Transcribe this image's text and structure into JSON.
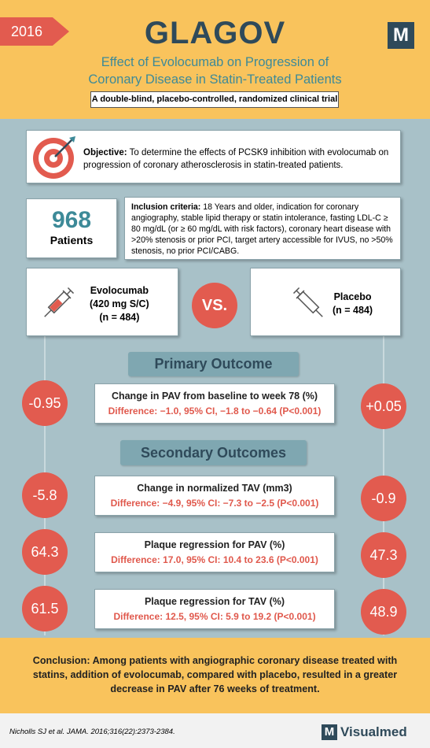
{
  "header": {
    "year": "2016",
    "title": "GLAGOV",
    "logo": "M",
    "subtitle": [
      "Effect of Evolocumab on Progression of",
      "Coronary Disease in Statin-Treated Patients"
    ],
    "design": "A double-blind, placebo-controlled, randomized clinical trial"
  },
  "objective": {
    "label": "Objective:",
    "text": "To determine the effects of PCSK9 inhibition with evolocumab on progression of coronary atherosclerosis in statin-treated patients."
  },
  "patients": {
    "count": "968",
    "label": "Patients"
  },
  "inclusion": {
    "label": "Inclusion criteria:",
    "text": "18 Years and older, indication for coronary angiography, stable lipid therapy or statin intolerance, fasting LDL-C ≥ 80 mg/dL (or ≥ 60 mg/dL with risk factors), coronary heart disease with >20% stenosis or prior PCI, target artery accessible for IVUS, no >50% stenosis, no prior PCI/CABG."
  },
  "arms": [
    {
      "name": "Evolocumab",
      "lines": [
        "(420 mg S/C)",
        "(n = 484)"
      ]
    },
    {
      "name": "Placebo",
      "lines": [
        "(n = 484)"
      ]
    }
  ],
  "vs": "VS.",
  "primary": {
    "heading": "Primary Outcome",
    "outcomes": [
      {
        "title": "Change in PAV from baseline to week 78 (%)",
        "difference": "Difference: −1.0, 95% CI, −1.8 to −0.64 (P<0.001)",
        "evolocumab": "-0.95",
        "placebo": "+0.05"
      }
    ]
  },
  "secondary": {
    "heading": "Secondary Outcomes",
    "outcomes": [
      {
        "title": "Change in normalized TAV (mm3)",
        "difference": "Difference: −4.9, 95% CI: −7.3 to −2.5 (P<0.001)",
        "evolocumab": "-5.8",
        "placebo": "-0.9"
      },
      {
        "title": "Plaque regression for PAV (%)",
        "difference": "Difference: 17.0, 95% CI: 10.4 to 23.6 (P<0.001)",
        "evolocumab": "64.3",
        "placebo": "47.3"
      },
      {
        "title": "Plaque regression for TAV (%)",
        "difference": "Difference: 12.5, 95% CI: 5.9 to 19.2 (P<0.001)",
        "evolocumab": "61.5",
        "placebo": "48.9"
      }
    ]
  },
  "conclusion": {
    "label": "Conclusion:",
    "text": "Among patients with angiographic coronary disease treated with statins, addition of evolocumab, compared with placebo, resulted in a greater decrease in PAV after 76 weeks of treatment."
  },
  "footer": {
    "citation": "Nicholls SJ et al. JAMA. 2016;316(22):2373-2384.",
    "logo": "M",
    "brand": "Visualmed"
  }
}
